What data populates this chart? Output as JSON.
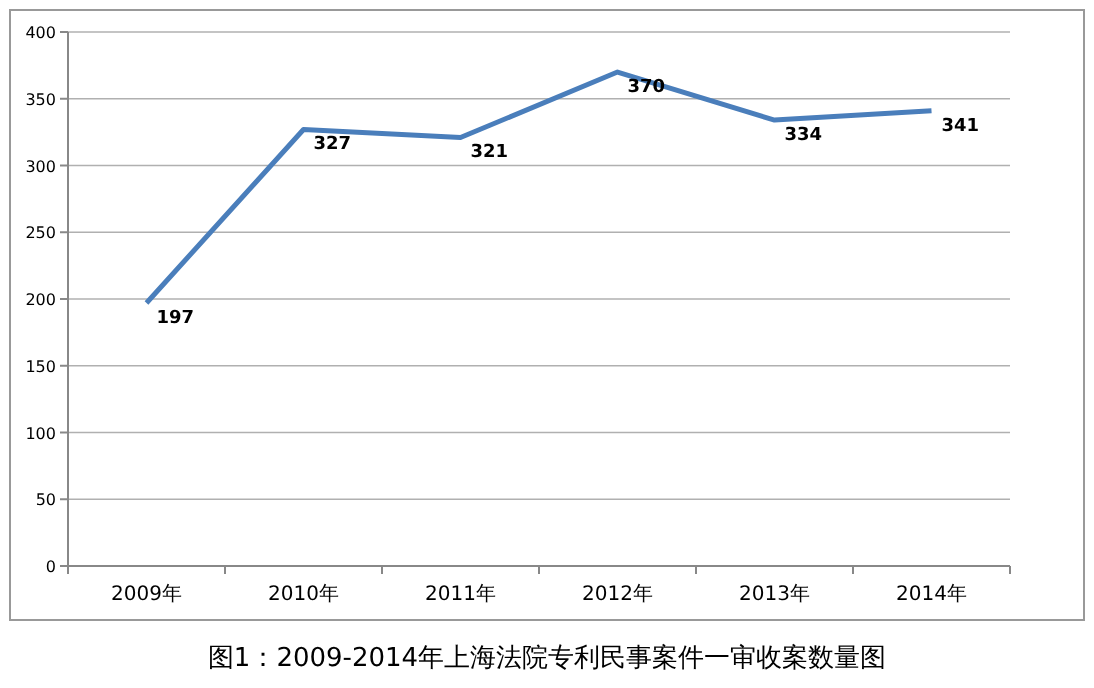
{
  "chart_data": {
    "type": "line",
    "title": "图1：2009-2014年上海法院专利民事案件一审收案数量图",
    "categories": [
      "2009年",
      "2010年",
      "2011年",
      "2012年",
      "2013年",
      "2014年"
    ],
    "series": [
      {
        "color": "#4a7ebb",
        "values": [
          197,
          327,
          321,
          370,
          334,
          341
        ]
      }
    ],
    "ylim": [
      0,
      400
    ],
    "yticks": [
      0,
      50,
      100,
      150,
      200,
      250,
      300,
      350,
      400
    ],
    "grid": "y",
    "data_labels": true,
    "marker": "none",
    "line_style": "solid"
  }
}
